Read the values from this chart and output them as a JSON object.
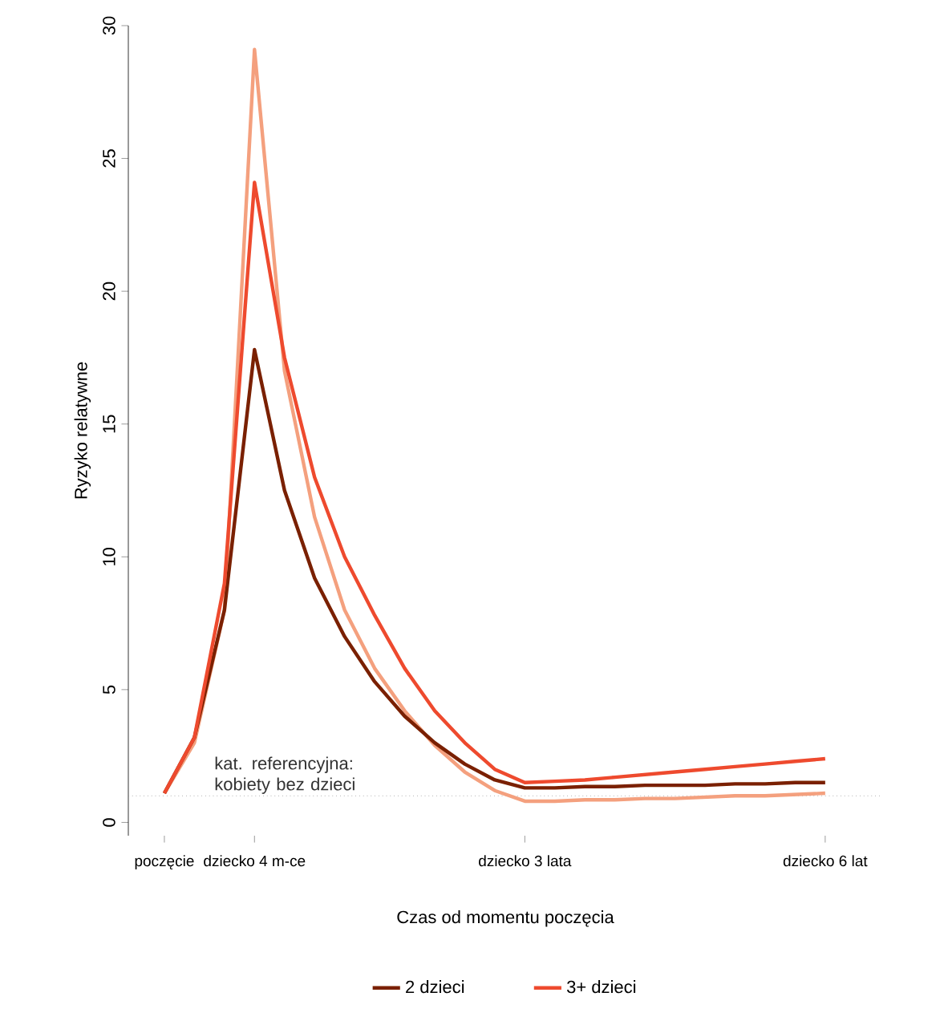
{
  "chart_data": {
    "type": "line",
    "xlabel": "Czas od momentu poczęcia",
    "ylabel": "Ryzyko relatywne",
    "categories": [
      "poczęcie",
      null,
      null,
      "dziecko 4 m-ce",
      null,
      null,
      null,
      null,
      null,
      null,
      null,
      null,
      "dziecko 3 lata",
      null,
      null,
      null,
      null,
      null,
      null,
      null,
      null,
      null,
      "dziecko 6 lat"
    ],
    "series": [
      {
        "color": "#f4a07e",
        "values": [
          1.1,
          3,
          8,
          29.1,
          17,
          11.5,
          8,
          5.8,
          4.2,
          2.9,
          1.9,
          1.2,
          0.8,
          0.8,
          0.85,
          0.85,
          0.9,
          0.9,
          0.95,
          1,
          1,
          1.05,
          1.1
        ]
      },
      {
        "name": "2 dzieci",
        "color": "#7a2000",
        "values": [
          1.1,
          3.2,
          8,
          17.8,
          12.5,
          9.2,
          7,
          5.3,
          4,
          3,
          2.2,
          1.6,
          1.3,
          1.3,
          1.35,
          1.35,
          1.4,
          1.4,
          1.4,
          1.45,
          1.45,
          1.5,
          1.5
        ]
      },
      {
        "name": "3+ dzieci",
        "color": "#ee4a2e",
        "values": [
          1.1,
          3.2,
          9,
          24.1,
          17.5,
          13,
          10,
          7.8,
          5.8,
          4.2,
          3,
          2,
          1.5,
          1.55,
          1.6,
          1.7,
          1.8,
          1.9,
          2,
          2.1,
          2.2,
          2.3,
          2.4
        ]
      }
    ],
    "ylim": [
      -0.5,
      30
    ],
    "yticks": [
      0,
      5,
      10,
      15,
      20,
      25,
      30
    ],
    "ref_lines": [
      {
        "axis": "y",
        "value": 1,
        "label": "kat. referencyjna: kobiety bez dzieci",
        "color": "#888888",
        "line_style": "dotted"
      }
    ],
    "legend": "bottom",
    "grid": false,
    "marker": "none",
    "line_style": "solid"
  }
}
